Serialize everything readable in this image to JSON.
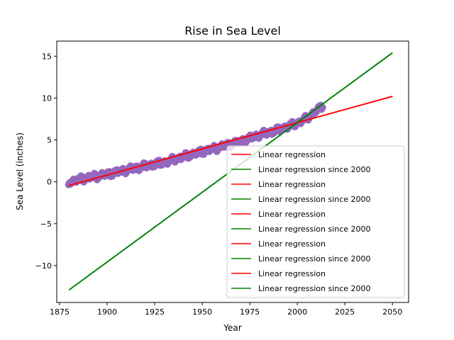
{
  "chart_data": {
    "type": "scatter",
    "title": "Rise in Sea Level",
    "xlabel": "Year",
    "ylabel": "Sea Level (inches)",
    "xlim": [
      1873.5,
      2058.5
    ],
    "ylim": [
      -14.4,
      16.8
    ],
    "xticks": [
      1875,
      1900,
      1925,
      1950,
      1975,
      2000,
      2025,
      2050
    ],
    "yticks": [
      -10,
      -5,
      0,
      5,
      10,
      15
    ],
    "grid": false,
    "legend_position": "lower-right",
    "scatter_color": "#9467bd",
    "scatter_series": {
      "x_start": 1880,
      "x_end": 2013,
      "y_anchor_years": [
        1880,
        1890,
        1900,
        1910,
        1920,
        1930,
        1940,
        1950,
        1960,
        1970,
        1980,
        1990,
        2000,
        2005,
        2013
      ],
      "y_anchor_values": [
        0.0,
        0.5,
        0.9,
        1.4,
        1.9,
        2.3,
        3.0,
        3.6,
        4.2,
        4.8,
        5.6,
        6.2,
        7.0,
        7.6,
        9.0
      ]
    },
    "series": [
      {
        "name": "Linear regression",
        "color": "#ff0000",
        "x": [
          1880,
          2050
        ],
        "y": [
          -0.45,
          10.2
        ]
      },
      {
        "name": "Linear regression since 2000",
        "color": "#008000",
        "x": [
          1880,
          2050
        ],
        "y": [
          -12.9,
          15.4
        ]
      },
      {
        "name": "Linear regression",
        "color": "#ff0000",
        "x": [
          1880,
          2050
        ],
        "y": [
          -0.45,
          10.2
        ]
      },
      {
        "name": "Linear regression since 2000",
        "color": "#008000",
        "x": [
          1880,
          2050
        ],
        "y": [
          -12.9,
          15.4
        ]
      },
      {
        "name": "Linear regression",
        "color": "#ff0000",
        "x": [
          1880,
          2050
        ],
        "y": [
          -0.45,
          10.2
        ]
      },
      {
        "name": "Linear regression since 2000",
        "color": "#008000",
        "x": [
          1880,
          2050
        ],
        "y": [
          -12.9,
          15.4
        ]
      },
      {
        "name": "Linear regression",
        "color": "#ff0000",
        "x": [
          1880,
          2050
        ],
        "y": [
          -0.45,
          10.2
        ]
      },
      {
        "name": "Linear regression since 2000",
        "color": "#008000",
        "x": [
          1880,
          2050
        ],
        "y": [
          -12.9,
          15.4
        ]
      },
      {
        "name": "Linear regression",
        "color": "#ff0000",
        "x": [
          1880,
          2050
        ],
        "y": [
          -0.45,
          10.2
        ]
      },
      {
        "name": "Linear regression since 2000",
        "color": "#008000",
        "x": [
          1880,
          2050
        ],
        "y": [
          -12.9,
          15.4
        ]
      }
    ]
  }
}
